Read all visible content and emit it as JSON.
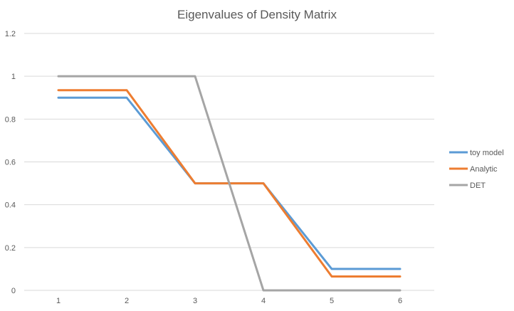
{
  "chart_data": {
    "type": "line",
    "title": "Eigenvalues of Density Matrix",
    "xlabel": "",
    "ylabel": "",
    "categories": [
      "1",
      "2",
      "3",
      "4",
      "5",
      "6"
    ],
    "ylim": [
      0,
      1.2
    ],
    "yticks": [
      "0",
      "0.2",
      "0.4",
      "0.6",
      "0.8",
      "1",
      "1.2"
    ],
    "grid": true,
    "legend_position": "right",
    "series": [
      {
        "name": "toy model",
        "color": "#5B9BD5",
        "values": [
          0.9,
          0.9,
          0.5,
          0.5,
          0.1,
          0.1
        ]
      },
      {
        "name": "Analytic",
        "color": "#ED7D31",
        "values": [
          0.935,
          0.935,
          0.5,
          0.5,
          0.065,
          0.065
        ]
      },
      {
        "name": "DET",
        "color": "#A5A5A5",
        "values": [
          1,
          1,
          1,
          0,
          0,
          0
        ]
      }
    ]
  }
}
